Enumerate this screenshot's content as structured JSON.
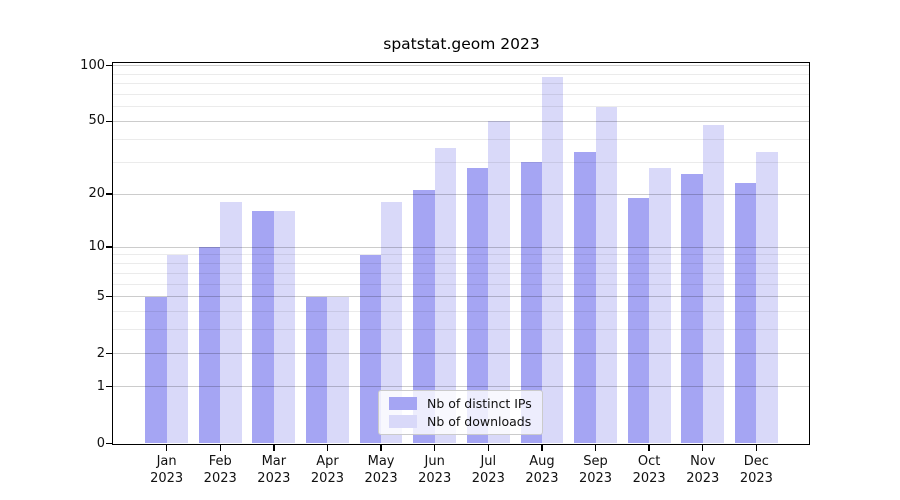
{
  "chart_data": {
    "type": "bar",
    "title": "spatstat.geom 2023",
    "categories": [
      "Jan",
      "Feb",
      "Mar",
      "Apr",
      "May",
      "Jun",
      "Jul",
      "Aug",
      "Sep",
      "Oct",
      "Nov",
      "Dec"
    ],
    "x_year_label": "2023",
    "series": [
      {
        "name": "Nb of distinct IPs",
        "color": "#a5a5f3",
        "values": [
          5,
          10,
          16,
          5,
          9,
          21,
          28,
          30,
          34,
          19,
          26,
          23
        ]
      },
      {
        "name": "Nb of downloads",
        "color": "#d9d9f9",
        "values": [
          9,
          18,
          16,
          5,
          18,
          36,
          50,
          87,
          60,
          28,
          48,
          34
        ]
      }
    ],
    "yscale": "log1p",
    "ylim": [
      0,
      105
    ],
    "ytick_labels": [
      0,
      1,
      2,
      5,
      10,
      20,
      50,
      100
    ],
    "major_gridlines": [
      1,
      2,
      5,
      10,
      20,
      50,
      100
    ],
    "minor_gridlines": [
      3,
      4,
      6,
      7,
      8,
      9,
      30,
      40,
      60,
      70,
      80,
      90
    ],
    "grid": true,
    "legend_position": "lower center",
    "colors": {
      "axis": "#000000",
      "major_grid": "rgba(0,0,0,0.20)",
      "minor_grid": "rgba(0,0,0,0.08)"
    }
  }
}
